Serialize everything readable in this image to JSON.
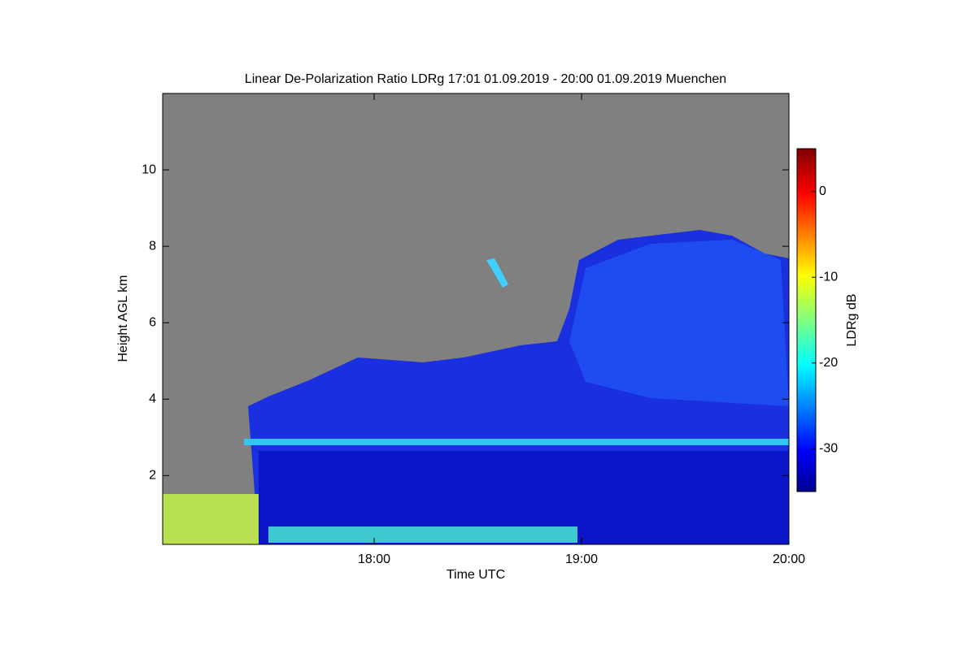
{
  "chart_data": {
    "type": "heatmap",
    "title": "Linear De-Polarization Ratio LDRg   17:01 01.09.2019 - 20:00 01.09.2019 Muenchen",
    "x_label": "Time UTC",
    "y_label": "Height AGL km",
    "colorbar_label": "LDRg dB",
    "xlim": [
      16.98,
      20.0
    ],
    "xticks": [
      {
        "value": 18,
        "label": "18:00"
      },
      {
        "value": 19,
        "label": "19:00"
      },
      {
        "value": 20,
        "label": "20:00"
      }
    ],
    "ylim": [
      0.2,
      12.0
    ],
    "yticks": [
      2,
      4,
      6,
      8,
      10
    ],
    "clim": [
      -35,
      5
    ],
    "cticks": [
      0,
      -10,
      -20,
      -30
    ],
    "colormap": "jet"
  }
}
